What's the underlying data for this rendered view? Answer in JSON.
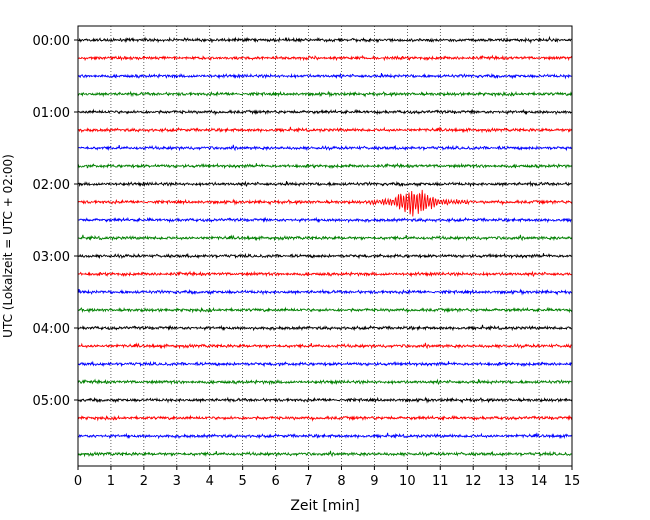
{
  "chart_data": {
    "type": "line",
    "title": "",
    "xlabel": "Zeit  [min]",
    "ylabel": "UTC (Lokalzeit = UTC + 02:00)",
    "xlim": [
      0,
      15
    ],
    "xticks": [
      0,
      1,
      2,
      3,
      4,
      5,
      6,
      7,
      8,
      9,
      10,
      11,
      12,
      13,
      14,
      15
    ],
    "ylim_minutes": [
      0,
      360
    ],
    "yticks": [
      {
        "label": "00:00",
        "minutes": 0
      },
      {
        "label": "01:00",
        "minutes": 60
      },
      {
        "label": "02:00",
        "minutes": 120
      },
      {
        "label": "03:00",
        "minutes": 180
      },
      {
        "label": "04:00",
        "minutes": 240
      },
      {
        "label": "05:00",
        "minutes": 300
      }
    ],
    "x_grid": true,
    "trace_interval_minutes": 15,
    "trace_count": 24,
    "trace_colors": [
      "#000000",
      "#ff0000",
      "#0000ff",
      "#008000"
    ],
    "events": [
      {
        "trace_start": "02:15",
        "x_start_min": 8.8,
        "x_end_min": 12.2,
        "peak_x_min": 10.2,
        "color": "#ff0000"
      }
    ]
  }
}
